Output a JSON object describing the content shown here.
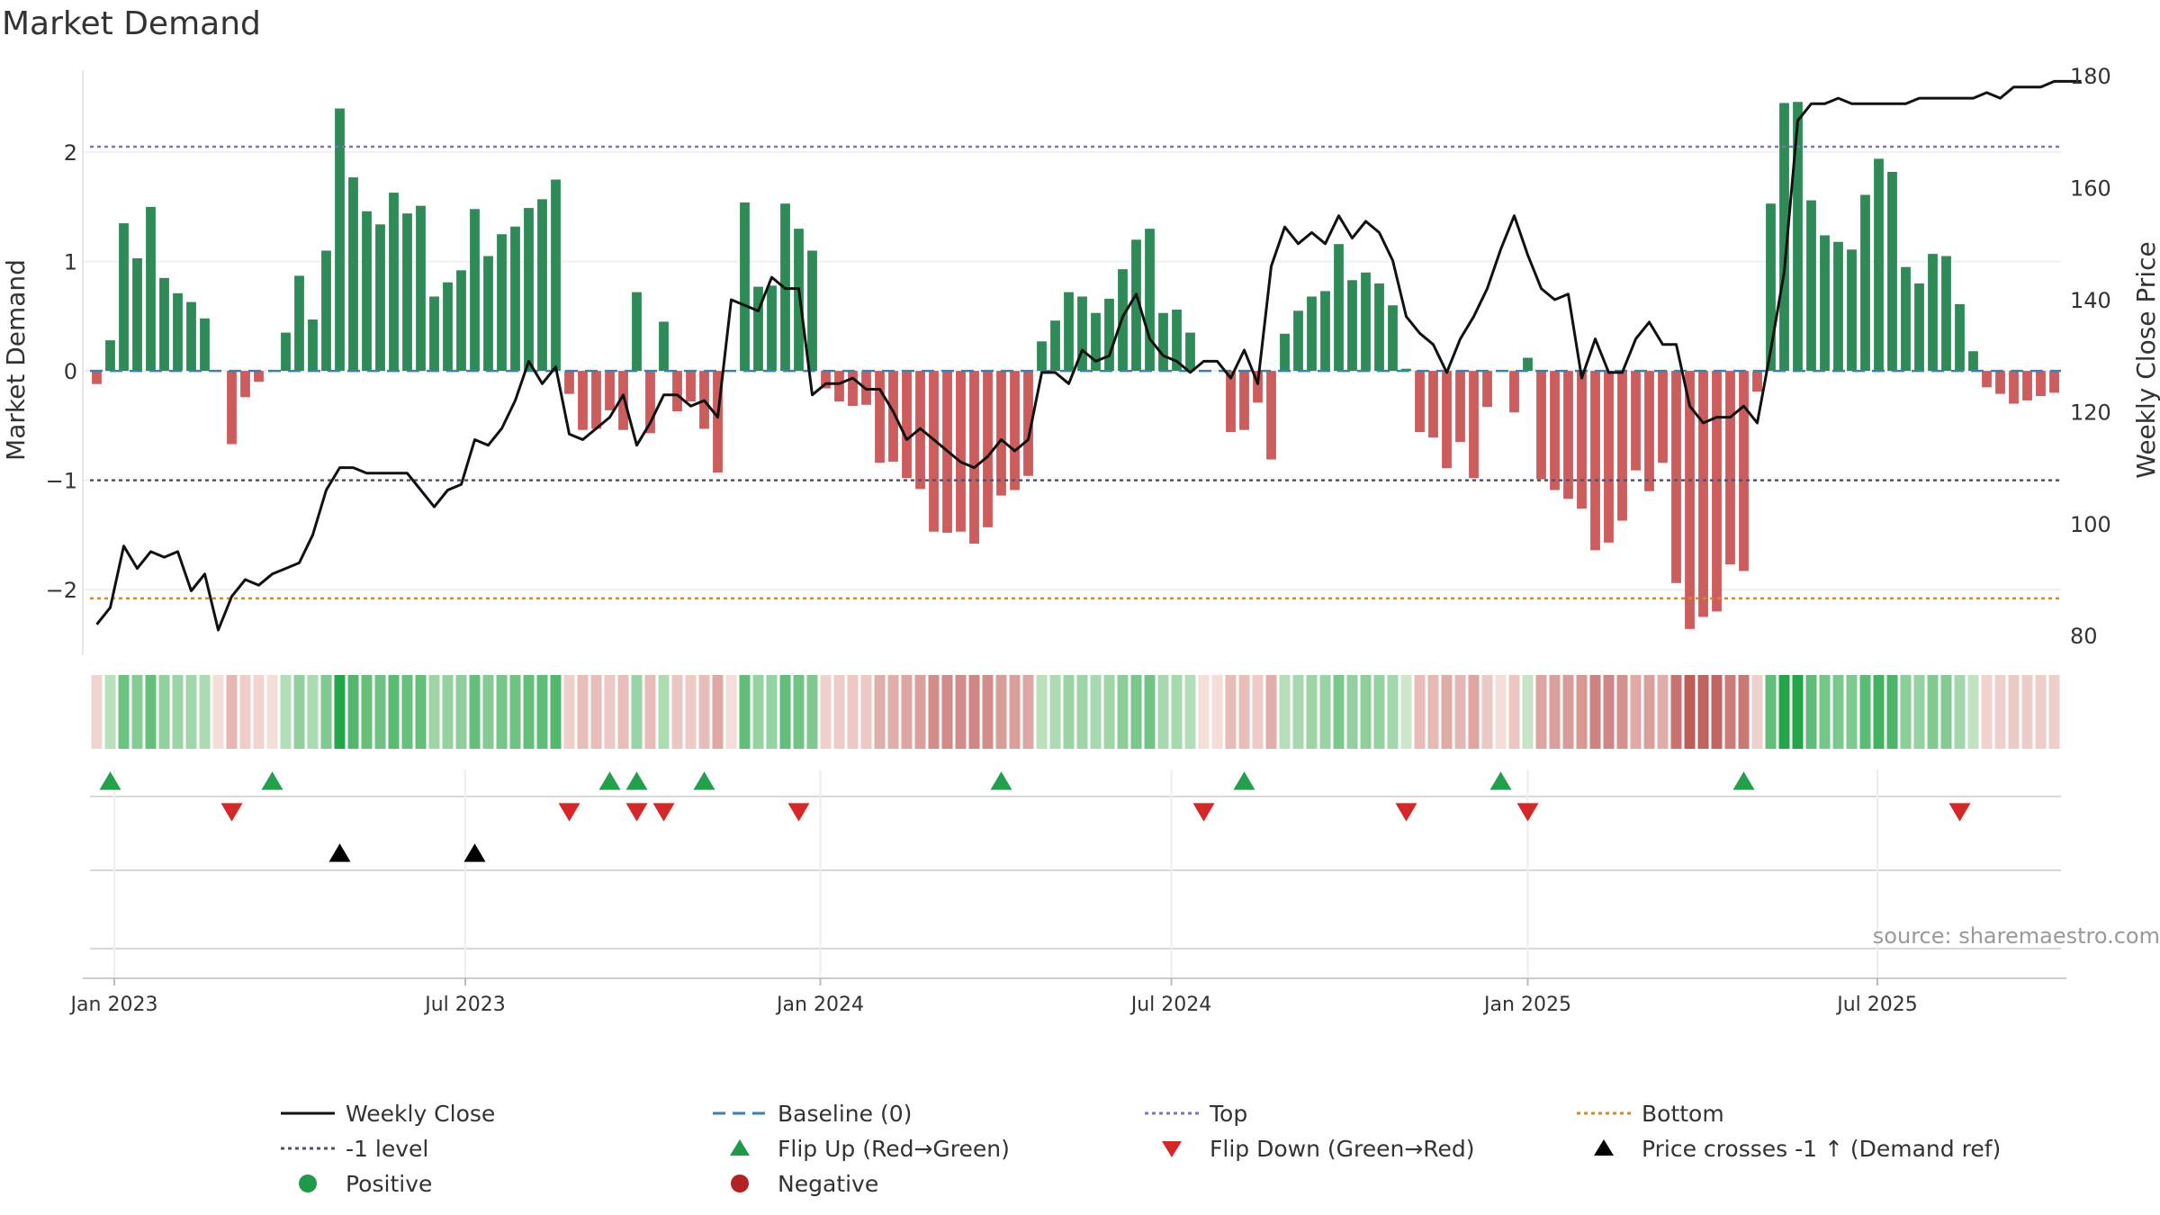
{
  "title": "Market Demand",
  "source": "source: sharemaestro.com",
  "chart_data": {
    "type": "bar",
    "title": "Market Demand",
    "ylabel": "Market Demand",
    "y2label": "Weekly Close Price",
    "ylim": [
      -2.6,
      2.75
    ],
    "y2lim": [
      76.5,
      181
    ],
    "yticks": [
      -2,
      -1,
      0,
      1,
      2
    ],
    "ytick_labels": [
      "−2",
      "−1",
      "0",
      "1",
      "2"
    ],
    "y2ticks": [
      80,
      100,
      120,
      140,
      160,
      180
    ],
    "y2tick_labels": [
      "80",
      "100",
      "120",
      "140",
      "160",
      "180"
    ],
    "xticks": [
      {
        "week": 1.3,
        "label": "Jan 2023"
      },
      {
        "week": 27.3,
        "label": "Jul 2023"
      },
      {
        "week": 53.6,
        "label": "Jan 2024"
      },
      {
        "week": 79.6,
        "label": "Jul 2024"
      },
      {
        "week": 106,
        "label": "Jan 2025"
      },
      {
        "week": 131.9,
        "label": "Jul 2025"
      }
    ],
    "levels": {
      "top": 2.05,
      "minus_one": -1,
      "bottom": -2.08,
      "baseline": 0
    },
    "series": [
      {
        "name": "Market Demand",
        "type": "bar",
        "values": [
          -0.12,
          0.28,
          1.35,
          1.03,
          1.5,
          0.85,
          0.71,
          0.63,
          0.48,
          0.0,
          -0.67,
          -0.24,
          -0.1,
          0.0,
          0.35,
          0.87,
          0.47,
          1.1,
          2.4,
          1.77,
          1.46,
          1.34,
          1.63,
          1.44,
          1.51,
          0.68,
          0.81,
          0.92,
          1.48,
          1.05,
          1.25,
          1.32,
          1.49,
          1.57,
          1.75,
          -0.21,
          -0.54,
          -0.53,
          -0.36,
          -0.54,
          0.72,
          -0.57,
          0.45,
          -0.37,
          -0.28,
          -0.53,
          -0.93,
          0.0,
          1.54,
          0.77,
          0.78,
          1.53,
          1.3,
          1.1,
          -0.16,
          -0.28,
          -0.32,
          -0.31,
          -0.84,
          -0.83,
          -0.98,
          -1.08,
          -1.47,
          -1.48,
          -1.47,
          -1.58,
          -1.43,
          -1.14,
          -1.09,
          -0.96,
          0.27,
          0.46,
          0.72,
          0.68,
          0.53,
          0.66,
          0.93,
          1.2,
          1.3,
          0.53,
          0.56,
          0.35,
          0.0,
          0.0,
          -0.56,
          -0.54,
          -0.29,
          -0.81,
          0.34,
          0.55,
          0.68,
          0.73,
          1.16,
          0.83,
          0.9,
          0.8,
          0.6,
          0.02,
          -0.56,
          -0.61,
          -0.89,
          -0.65,
          -0.98,
          -0.33,
          0.0,
          -0.38,
          0.12,
          -0.99,
          -1.09,
          -1.17,
          -1.26,
          -1.64,
          -1.57,
          -1.37,
          -0.91,
          -1.1,
          -0.84,
          -1.94,
          -2.36,
          -2.25,
          -2.2,
          -1.77,
          -1.83,
          -0.19,
          1.53,
          2.45,
          2.46,
          1.56,
          1.24,
          1.18,
          1.11,
          1.61,
          1.94,
          1.82,
          0.95,
          0.8,
          1.07,
          1.05,
          0.61,
          0.18,
          -0.15,
          -0.21,
          -0.3,
          -0.27,
          -0.23,
          -0.2
        ]
      },
      {
        "name": "Weekly Close",
        "type": "line",
        "axis": "right",
        "values": [
          82,
          85,
          96,
          92,
          95,
          94,
          95,
          88,
          91,
          81,
          87,
          90,
          89,
          91,
          92,
          93,
          98,
          106,
          110,
          110,
          109,
          109,
          109,
          109,
          106,
          103,
          106,
          107,
          115,
          114,
          117,
          122,
          129,
          125,
          128,
          116,
          115,
          117,
          119,
          123,
          114,
          118,
          123,
          123,
          121,
          122,
          119,
          140,
          139,
          138,
          144,
          142,
          142,
          123,
          125,
          125,
          126,
          124,
          124,
          120,
          115,
          117,
          115,
          113,
          111,
          110,
          112,
          115,
          113,
          115,
          127,
          127,
          125,
          131,
          129,
          130,
          137,
          141,
          133,
          130,
          129,
          127,
          129,
          129,
          126,
          131,
          125,
          146,
          153,
          150,
          152,
          150,
          155,
          151,
          154,
          152,
          147,
          137,
          134,
          132,
          127,
          133,
          137,
          142,
          149,
          155,
          148,
          142,
          140,
          141,
          126,
          133,
          127,
          127,
          133,
          136,
          132,
          132,
          121,
          118,
          119,
          119,
          121,
          118,
          131,
          145,
          172,
          175,
          175,
          176,
          175,
          175,
          175,
          175,
          175,
          176,
          176,
          176,
          176,
          176,
          177,
          176,
          178,
          178,
          178,
          179,
          179,
          179
        ]
      }
    ],
    "colour_strip": [
      -0.12,
      0.28,
      1.35,
      1.03,
      1.5,
      0.85,
      0.71,
      0.63,
      0.48,
      0.0,
      -0.67,
      -0.24,
      -0.1,
      0.0,
      0.35,
      0.87,
      0.47,
      1.1,
      2.4,
      1.77,
      1.46,
      1.34,
      1.63,
      1.44,
      1.51,
      0.68,
      0.81,
      0.92,
      1.48,
      1.05,
      1.25,
      1.32,
      1.49,
      1.57,
      1.75,
      -0.21,
      -0.54,
      -0.53,
      -0.36,
      -0.54,
      0.72,
      -0.57,
      0.45,
      -0.37,
      -0.28,
      -0.53,
      -0.93,
      0.0,
      1.54,
      0.77,
      0.78,
      1.53,
      1.3,
      1.1,
      -0.16,
      -0.28,
      -0.32,
      -0.31,
      -0.84,
      -0.83,
      -0.98,
      -1.08,
      -1.47,
      -1.48,
      -1.47,
      -1.58,
      -1.43,
      -1.14,
      -1.09,
      -0.96,
      0.27,
      0.46,
      0.72,
      0.68,
      0.53,
      0.66,
      0.93,
      1.2,
      1.3,
      0.53,
      0.56,
      0.35,
      0.0,
      0.0,
      -0.56,
      -0.54,
      -0.29,
      -0.81,
      0.34,
      0.55,
      0.68,
      0.73,
      1.16,
      0.83,
      0.9,
      0.8,
      0.6,
      0.02,
      -0.56,
      -0.61,
      -0.89,
      -0.65,
      -0.98,
      -0.33,
      0.0,
      -0.38,
      0.12,
      -0.99,
      -1.09,
      -1.17,
      -1.26,
      -1.64,
      -1.57,
      -1.37,
      -0.91,
      -1.1,
      -0.84,
      -1.94,
      -2.36,
      -2.25,
      -2.2,
      -1.77,
      -1.83,
      -0.19,
      1.53,
      2.45,
      2.46,
      1.56,
      1.24,
      1.18,
      1.11,
      1.61,
      1.94,
      1.82,
      0.95,
      0.8,
      1.07,
      1.05,
      0.61,
      0.18,
      -0.15,
      -0.21,
      -0.3,
      -0.27,
      -0.23,
      -0.2
    ],
    "flip_up_weeks": [
      1,
      13,
      38,
      40,
      45,
      67,
      85,
      104,
      122
    ],
    "flip_down_weeks": [
      10,
      35,
      40,
      42,
      52,
      82,
      97,
      106,
      138
    ],
    "price_cross_weeks": [
      18,
      28
    ],
    "legend_position": "bottom",
    "legend": [
      {
        "label": "Weekly Close",
        "marker": "line",
        "color": "#111111"
      },
      {
        "label": "Baseline (0)",
        "marker": "dash",
        "color": "#3a7fb5"
      },
      {
        "label": "Top",
        "marker": "dot",
        "color": "#7a73c9"
      },
      {
        "label": "Bottom",
        "marker": "dot",
        "color": "#d48a20"
      },
      {
        "label": "-1 level",
        "marker": "dot",
        "color": "#555566"
      },
      {
        "label": "Flip Up (Red→Green)",
        "marker": "triangle-up",
        "color": "#1f9a4a"
      },
      {
        "label": "Flip Down (Green→Red)",
        "marker": "triangle-down",
        "color": "#d62728"
      },
      {
        "label": "Price crosses -1 ↑ (Demand ref)",
        "marker": "triangle-up",
        "color": "#000000"
      },
      {
        "label": "Positive",
        "marker": "circle",
        "color": "#1f9a4a"
      },
      {
        "label": "Negative",
        "marker": "circle",
        "color": "#b22222"
      }
    ]
  },
  "colors": {
    "positive_bar": "#2e8b57",
    "negative_bar": "#cd5c5c",
    "flip_up": "#22a04a",
    "flip_down": "#d62728",
    "price_line": "#111111",
    "top_line": "#7a73c9",
    "bottom_line": "#d48a20",
    "minus_one_line": "#555566",
    "baseline": "#3a7fb5"
  }
}
